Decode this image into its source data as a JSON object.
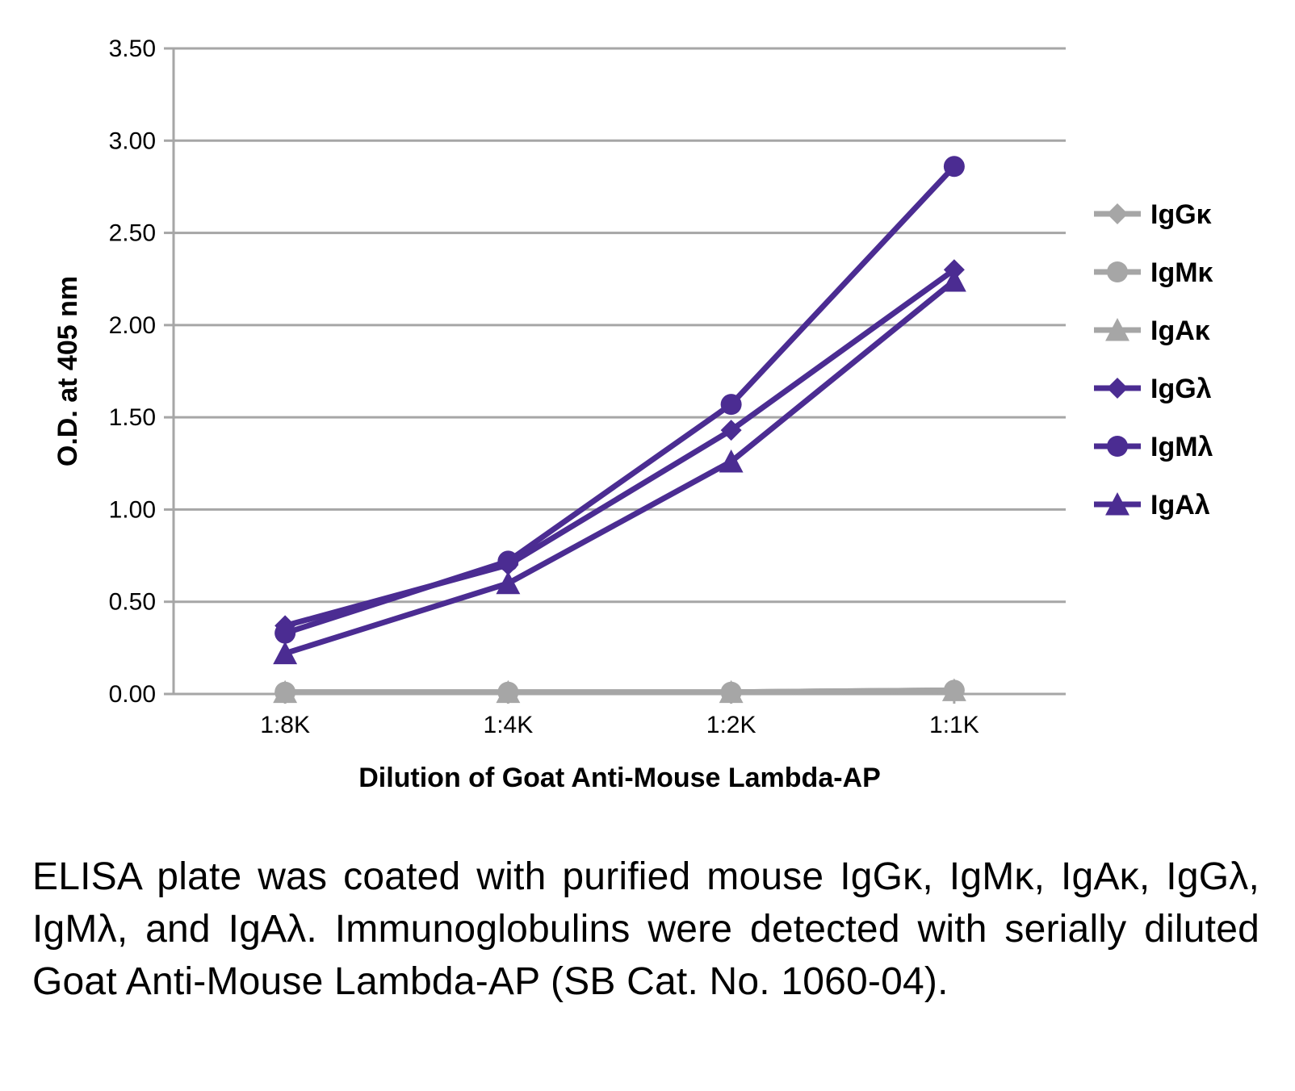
{
  "chart": {
    "type": "line",
    "background_color": "#ffffff",
    "plot_bg": "#ffffff",
    "grid_color": "#a6a6a6",
    "axis_color": "#a6a6a6",
    "label_color": "#000000",
    "tick_color": "#a6a6a6",
    "line_width": 7,
    "marker_size": 13,
    "axis_line_width": 3,
    "ylabel": "O.D. at 405 nm",
    "xlabel": "Dilution of Goat Anti-Mouse Lambda-AP",
    "ylabel_fontsize": 34,
    "xlabel_fontsize": 34,
    "tick_fontsize": 30,
    "legend_fontsize": 34,
    "ylim": [
      0,
      3.5
    ],
    "ytick_step": 0.5,
    "ytick_labels": [
      "0.00",
      "0.50",
      "1.00",
      "1.50",
      "2.00",
      "2.50",
      "3.00",
      "3.50"
    ],
    "x_categories": [
      "1:8K",
      "1:4K",
      "1:2K",
      "1:1K"
    ],
    "series": [
      {
        "key": "IgGk",
        "label": "IgGκ",
        "color": "#a6a6a6",
        "marker": "diamond",
        "values": [
          0.01,
          0.01,
          0.01,
          0.02
        ]
      },
      {
        "key": "IgMk",
        "label": "IgMκ",
        "color": "#a6a6a6",
        "marker": "circle",
        "values": [
          0.01,
          0.01,
          0.01,
          0.02
        ]
      },
      {
        "key": "IgAk",
        "label": "IgAκ",
        "color": "#a6a6a6",
        "marker": "triangle",
        "values": [
          0.01,
          0.01,
          0.01,
          0.02
        ]
      },
      {
        "key": "IgGl",
        "label": "IgGλ",
        "color": "#4b2c92",
        "marker": "diamond",
        "values": [
          0.37,
          0.7,
          1.43,
          2.3
        ]
      },
      {
        "key": "IgMl",
        "label": "IgMλ",
        "color": "#4b2c92",
        "marker": "circle",
        "values": [
          0.33,
          0.72,
          1.57,
          2.86
        ]
      },
      {
        "key": "IgAl",
        "label": "IgAλ",
        "color": "#4b2c92",
        "marker": "triangle",
        "values": [
          0.22,
          0.6,
          1.26,
          2.24
        ]
      }
    ],
    "legend": {
      "position": "right"
    }
  },
  "caption": {
    "text": "ELISA plate was coated with purified mouse IgGκ, IgMκ, IgAκ, IgGλ, IgMλ, and IgAλ.  Immunoglobulins were detected with serially diluted Goat Anti-Mouse Lambda-AP (SB Cat. No. 1060-04).",
    "fontsize": 48,
    "color": "#000000"
  }
}
